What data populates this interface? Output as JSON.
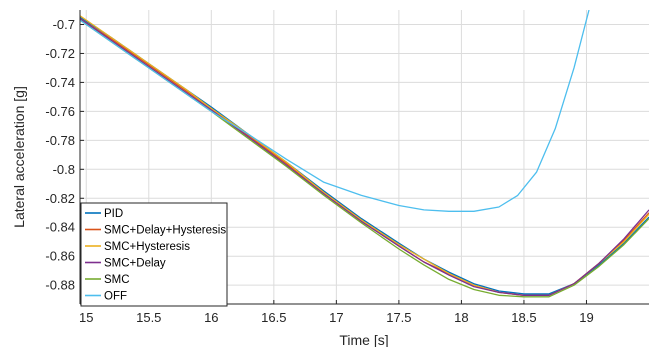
{
  "chart_data": {
    "type": "line",
    "title": "",
    "xlabel": "Time [s]",
    "ylabel": "Lateral acceleration [g]",
    "xlim": [
      14.95,
      19.5
    ],
    "ylim": [
      -0.893,
      -0.69
    ],
    "xticks": [
      15,
      15.5,
      16,
      16.5,
      17,
      17.5,
      18,
      18.5,
      19
    ],
    "xtick_labels": [
      "15",
      "15.5",
      "16",
      "16.5",
      "17",
      "17.5",
      "18",
      "18.5",
      "19"
    ],
    "yticks": [
      -0.7,
      -0.72,
      -0.74,
      -0.76,
      -0.78,
      -0.8,
      -0.82,
      -0.84,
      -0.86,
      -0.88
    ],
    "ytick_labels": [
      "-0.7",
      "-0.72",
      "-0.74",
      "-0.76",
      "-0.78",
      "-0.8",
      "-0.82",
      "-0.84",
      "-0.86",
      "-0.88"
    ],
    "grid": true,
    "legend_position": "bottom-left",
    "series": [
      {
        "name": "PID",
        "color": "#0072BD",
        "x": [
          14.95,
          15.2,
          15.5,
          15.8,
          16.0,
          16.3,
          16.6,
          16.9,
          17.2,
          17.5,
          17.7,
          17.9,
          18.1,
          18.3,
          18.5,
          18.7,
          18.9,
          19.1,
          19.3,
          19.5
        ],
        "y": [
          -0.695,
          -0.709,
          -0.727,
          -0.745,
          -0.757,
          -0.776,
          -0.795,
          -0.815,
          -0.834,
          -0.851,
          -0.862,
          -0.871,
          -0.879,
          -0.884,
          -0.886,
          -0.886,
          -0.879,
          -0.866,
          -0.851,
          -0.833
        ]
      },
      {
        "name": "SMC+Delay+Hysteresis",
        "color": "#D95319",
        "x": [
          14.95,
          15.2,
          15.5,
          15.8,
          16.0,
          16.3,
          16.6,
          16.9,
          17.2,
          17.5,
          17.7,
          17.9,
          18.1,
          18.3,
          18.5,
          18.7,
          18.9,
          19.1,
          19.3,
          19.5
        ],
        "y": [
          -0.696,
          -0.71,
          -0.728,
          -0.746,
          -0.758,
          -0.777,
          -0.796,
          -0.816,
          -0.835,
          -0.853,
          -0.864,
          -0.872,
          -0.88,
          -0.885,
          -0.887,
          -0.887,
          -0.879,
          -0.865,
          -0.849,
          -0.83
        ]
      },
      {
        "name": "SMC+Hysteresis",
        "color": "#EDB120",
        "x": [
          14.95,
          15.2,
          15.5,
          15.8,
          16.0,
          16.3,
          16.6,
          16.9,
          17.2,
          17.5,
          17.7,
          17.9,
          18.1,
          18.3,
          18.5,
          18.7,
          18.9,
          19.1,
          19.3,
          19.5
        ],
        "y": [
          -0.694,
          -0.709,
          -0.727,
          -0.745,
          -0.758,
          -0.776,
          -0.795,
          -0.816,
          -0.835,
          -0.852,
          -0.862,
          -0.872,
          -0.88,
          -0.885,
          -0.887,
          -0.887,
          -0.879,
          -0.865,
          -0.85,
          -0.831
        ]
      },
      {
        "name": "SMC+Delay",
        "color": "#7E2F8E",
        "x": [
          14.95,
          15.2,
          15.5,
          15.8,
          16.0,
          16.3,
          16.6,
          16.9,
          17.2,
          17.5,
          17.7,
          17.9,
          18.1,
          18.3,
          18.5,
          18.7,
          18.9,
          19.1,
          19.3,
          19.5
        ],
        "y": [
          -0.696,
          -0.711,
          -0.729,
          -0.747,
          -0.759,
          -0.778,
          -0.797,
          -0.817,
          -0.836,
          -0.853,
          -0.864,
          -0.873,
          -0.881,
          -0.885,
          -0.887,
          -0.887,
          -0.879,
          -0.865,
          -0.848,
          -0.828
        ]
      },
      {
        "name": "SMC",
        "color": "#77AC30",
        "x": [
          14.95,
          15.2,
          15.5,
          15.8,
          16.0,
          16.3,
          16.6,
          16.9,
          17.2,
          17.5,
          17.7,
          17.9,
          18.1,
          18.3,
          18.5,
          18.7,
          18.9,
          19.1,
          19.3,
          19.5
        ],
        "y": [
          -0.697,
          -0.712,
          -0.73,
          -0.748,
          -0.76,
          -0.779,
          -0.798,
          -0.818,
          -0.837,
          -0.855,
          -0.866,
          -0.876,
          -0.883,
          -0.887,
          -0.888,
          -0.888,
          -0.88,
          -0.867,
          -0.852,
          -0.834
        ]
      },
      {
        "name": "OFF",
        "color": "#4DBEEE",
        "x": [
          14.95,
          15.2,
          15.5,
          15.8,
          16.0,
          16.3,
          16.6,
          16.9,
          17.2,
          17.5,
          17.7,
          17.9,
          18.1,
          18.3,
          18.45,
          18.6,
          18.75,
          18.9,
          19.02
        ],
        "y": [
          -0.697,
          -0.712,
          -0.73,
          -0.748,
          -0.76,
          -0.776,
          -0.793,
          -0.809,
          -0.818,
          -0.825,
          -0.828,
          -0.829,
          -0.829,
          -0.826,
          -0.818,
          -0.802,
          -0.772,
          -0.73,
          -0.69
        ]
      }
    ]
  }
}
